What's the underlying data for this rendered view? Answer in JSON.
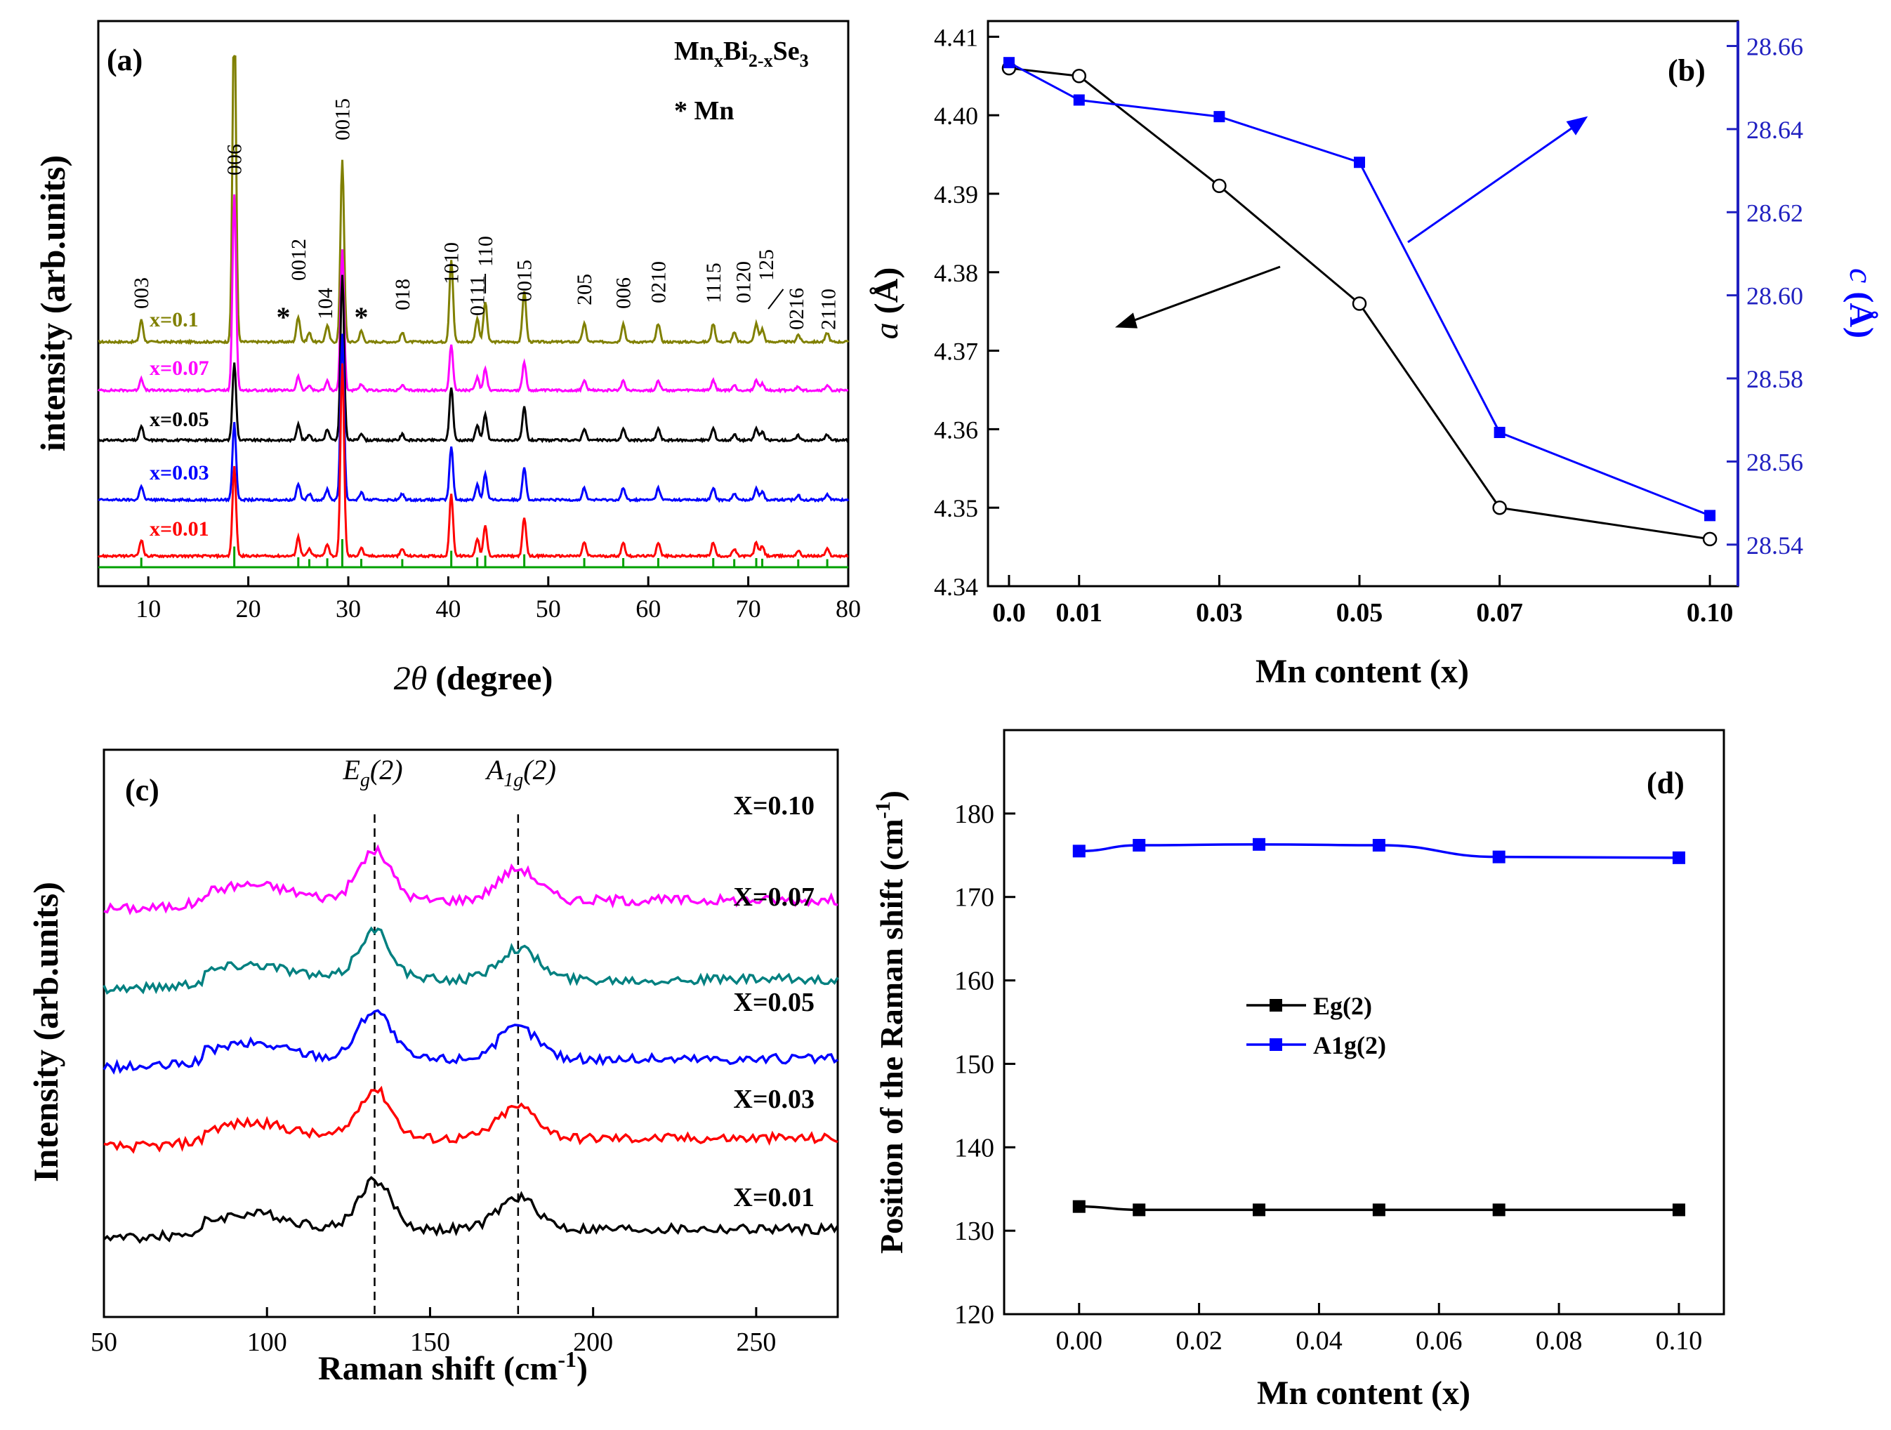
{
  "colors": {
    "black": "#000000",
    "blue": "#0000ff",
    "red": "#ff0000",
    "magenta": "#ff00ff",
    "olive": "#808000",
    "teal": "#008080",
    "green": "#00a000",
    "axis_blue": "#2020c0"
  },
  "chart_data": [
    {
      "panel": "a",
      "type": "line",
      "panel_label": "(a)",
      "title_formula": {
        "p1": "Mn",
        "s1": "x",
        "p2": "Bi",
        "s2": "2-x",
        "p3": "Se",
        "s3": "3"
      },
      "marker_note": "* Mn",
      "xlabel_italic": "2θ",
      "xlabel_rest": " (degree)",
      "ylabel": "intensity (arb.units)",
      "xlim": [
        5,
        80
      ],
      "x_ticks": [
        "10",
        "20",
        "30",
        "40",
        "50",
        "60",
        "70",
        "80"
      ],
      "x_tick_values": [
        10,
        20,
        30,
        40,
        50,
        60,
        70,
        80
      ],
      "peaks_2theta": [
        9.3,
        18.6,
        25.0,
        26.1,
        27.9,
        29.4,
        31.3,
        35.4,
        40.3,
        42.9,
        43.7,
        47.6,
        53.6,
        57.5,
        61.0,
        66.5,
        68.6,
        70.8,
        71.4,
        75.0,
        77.9
      ],
      "peak_rel_intensity": [
        0.12,
        0.65,
        0.14,
        0.05,
        0.09,
        1.0,
        0.06,
        0.05,
        0.45,
        0.13,
        0.22,
        0.28,
        0.1,
        0.1,
        0.1,
        0.1,
        0.05,
        0.1,
        0.07,
        0.04,
        0.05
      ],
      "series": [
        {
          "name": "x=0.1",
          "color": "#808000",
          "scale": 1.0,
          "peak_006": 2.8
        },
        {
          "name": "x=0.07",
          "color": "#ff00ff",
          "scale": 0.55,
          "peak_006": 3.0
        },
        {
          "name": "x=0.05",
          "color": "#000000",
          "scale": 0.65,
          "peak_006": 1.0
        },
        {
          "name": "x=0.03",
          "color": "#0000ff",
          "scale": 0.65,
          "peak_006": 1.0
        },
        {
          "name": "x=0.01",
          "color": "#ff0000",
          "scale": 0.75,
          "peak_006": 1.0
        }
      ],
      "reference_color": "#00a000",
      "peak_labels": [
        {
          "text": "003",
          "x": 9.3
        },
        {
          "text": "006",
          "x": 18.6
        },
        {
          "text": "*",
          "x": 23.5
        },
        {
          "text": "0012",
          "x": 25.0
        },
        {
          "text": "104",
          "x": 27.7
        },
        {
          "text": "0015",
          "x": 29.4
        },
        {
          "text": "*",
          "x": 31.3
        },
        {
          "text": "018",
          "x": 35.4
        },
        {
          "text": "1010",
          "x": 40.3
        },
        {
          "text": "0111",
          "x": 42.9
        },
        {
          "text": "110",
          "x": 43.7
        },
        {
          "text": "0015",
          "x": 47.6
        },
        {
          "text": "205",
          "x": 53.6
        },
        {
          "text": "006",
          "x": 57.5
        },
        {
          "text": "0210",
          "x": 61.0
        },
        {
          "text": "1115",
          "x": 66.5
        },
        {
          "text": "0120",
          "x": 69.5
        },
        {
          "text": "125",
          "x": 71.8
        },
        {
          "text": "0216",
          "x": 74.8
        },
        {
          "text": "2110",
          "x": 78.0
        }
      ]
    },
    {
      "panel": "b",
      "type": "line",
      "panel_label": "(b)",
      "xlabel": "Mn content (x)",
      "ylabel_left_italic": "a",
      "ylabel_left_rest": " (Å)",
      "ylabel_right_italic": "c",
      "ylabel_right_rest": " (Å)",
      "x_ticks": [
        "0.0",
        "0.01",
        "0.03",
        "0.05",
        "0.07",
        "0.10"
      ],
      "x_tick_values": [
        0.0,
        0.01,
        0.03,
        0.05,
        0.07,
        0.1
      ],
      "xlim": [
        -0.003,
        0.104
      ],
      "ylim_left": [
        4.34,
        4.412
      ],
      "ylim_right": [
        28.53,
        28.666
      ],
      "y_ticks_left": [
        "4.34",
        "4.35",
        "4.36",
        "4.37",
        "4.38",
        "4.39",
        "4.40",
        "4.41"
      ],
      "y_tick_values_left": [
        4.34,
        4.35,
        4.36,
        4.37,
        4.38,
        4.39,
        4.4,
        4.41
      ],
      "y_ticks_right": [
        "28.54",
        "28.56",
        "28.58",
        "28.60",
        "28.62",
        "28.64",
        "28.66"
      ],
      "y_tick_values_right": [
        28.54,
        28.56,
        28.58,
        28.6,
        28.62,
        28.64,
        28.66
      ],
      "series": [
        {
          "name": "a",
          "axis": "left",
          "color": "#000000",
          "marker": "open-circle",
          "x": [
            0.0,
            0.01,
            0.03,
            0.05,
            0.07,
            0.1
          ],
          "y": [
            4.406,
            4.405,
            4.391,
            4.376,
            4.35,
            4.346
          ]
        },
        {
          "name": "c",
          "axis": "right",
          "color": "#0000ff",
          "marker": "filled-square",
          "x": [
            0.0,
            0.01,
            0.03,
            0.05,
            0.07,
            0.1
          ],
          "y": [
            28.656,
            28.647,
            28.643,
            28.632,
            28.567,
            28.547
          ]
        }
      ]
    },
    {
      "panel": "c",
      "type": "line",
      "panel_label": "(c)",
      "xlabel_pre": "Raman shift (cm",
      "xlabel_sup": "-1",
      "xlabel_post": ")",
      "ylabel": "Intensity (arb.units)",
      "xlim": [
        50,
        275
      ],
      "x_ticks": [
        "50",
        "100",
        "150",
        "200",
        "250"
      ],
      "x_tick_values": [
        50,
        100,
        150,
        200,
        250
      ],
      "modes": [
        {
          "main": "E",
          "sub": "g",
          "rest": "(2)",
          "x": 133
        },
        {
          "main": "A",
          "sub": "1g",
          "rest": "(2)",
          "x": 177
        }
      ],
      "series": [
        {
          "name": "X=0.10",
          "color": "#ff00ff",
          "base": 0.72
        },
        {
          "name": "X=0.07",
          "color": "#008080",
          "base": 0.58
        },
        {
          "name": "X=0.05",
          "color": "#0000ff",
          "base": 0.44
        },
        {
          "name": "X=0.03",
          "color": "#ff0000",
          "base": 0.3
        },
        {
          "name": "X=0.01",
          "color": "#000000",
          "base": 0.14
        }
      ]
    },
    {
      "panel": "d",
      "type": "line",
      "panel_label": "(d)",
      "xlabel": "Mn content (x)",
      "ylabel_pre": "Position of the Raman shift (cm",
      "ylabel_sup": "-1",
      "ylabel_post": ")",
      "xlim": [
        -0.0125,
        0.1075
      ],
      "ylim": [
        120,
        190
      ],
      "x_ticks": [
        "0.00",
        "0.02",
        "0.04",
        "0.06",
        "0.08",
        "0.10"
      ],
      "x_tick_values": [
        0.0,
        0.02,
        0.04,
        0.06,
        0.08,
        0.1
      ],
      "y_ticks": [
        "120",
        "130",
        "140",
        "150",
        "160",
        "170",
        "180"
      ],
      "y_tick_values": [
        120,
        130,
        140,
        150,
        160,
        170,
        180
      ],
      "legend_position": "center-left",
      "series": [
        {
          "name": "Eg(2)",
          "color": "#000000",
          "x": [
            0.0,
            0.01,
            0.03,
            0.05,
            0.07,
            0.1
          ],
          "y": [
            132.9,
            132.5,
            132.5,
            132.5,
            132.5,
            132.5
          ]
        },
        {
          "name": "A1g(2)",
          "color": "#0000ff",
          "x": [
            0.0,
            0.01,
            0.03,
            0.05,
            0.07,
            0.1
          ],
          "y": [
            175.5,
            176.2,
            176.3,
            176.2,
            174.8,
            174.7
          ]
        }
      ]
    }
  ]
}
